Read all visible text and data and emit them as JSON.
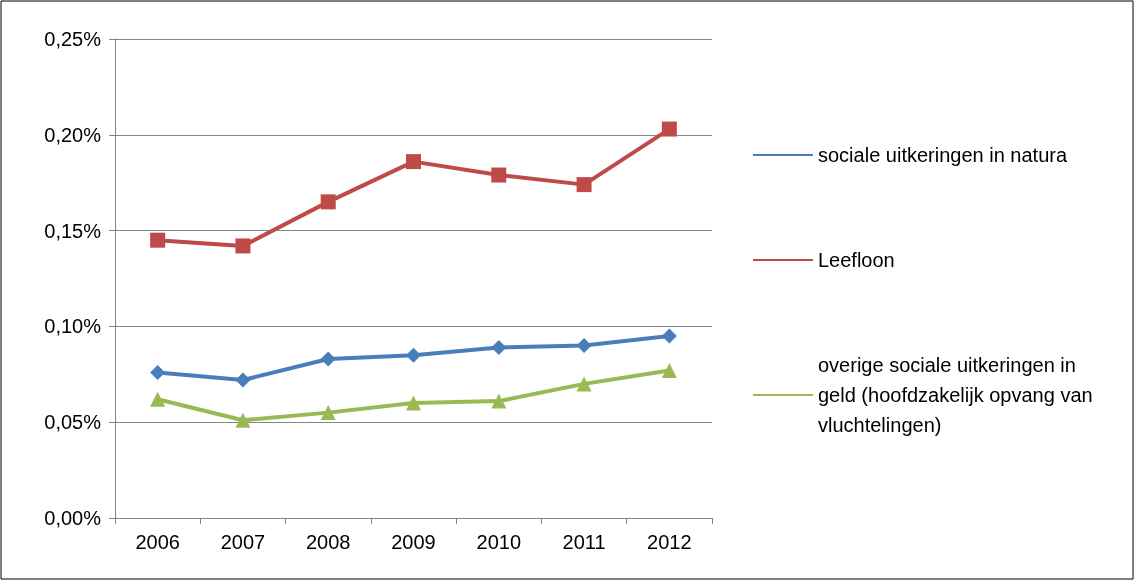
{
  "chart_data": {
    "type": "line",
    "categories": [
      "2006",
      "2007",
      "2008",
      "2009",
      "2010",
      "2011",
      "2012"
    ],
    "series": [
      {
        "name": "sociale uitkeringen in natura",
        "color": "#4a7ebb",
        "marker": "diamond",
        "values": [
          0.076,
          0.072,
          0.083,
          0.085,
          0.089,
          0.09,
          0.095
        ]
      },
      {
        "name": "Leefloon",
        "color": "#be4b48",
        "marker": "square",
        "values": [
          0.145,
          0.142,
          0.165,
          0.186,
          0.179,
          0.174,
          0.203
        ]
      },
      {
        "name": "overige sociale uitkeringen in geld (hoofdzakelijk opvang van vluchtelingen)",
        "color": "#98b954",
        "marker": "triangle",
        "values": [
          0.062,
          0.051,
          0.055,
          0.06,
          0.061,
          0.07,
          0.077
        ]
      }
    ],
    "ylim": [
      0,
      0.25
    ],
    "yticks": [
      {
        "value": 0,
        "label": "0,00%"
      },
      {
        "value": 0.05,
        "label": "0,05%"
      },
      {
        "value": 0.1,
        "label": "0,10%"
      },
      {
        "value": 0.15,
        "label": "0,15%"
      },
      {
        "value": 0.2,
        "label": "0,20%"
      },
      {
        "value": 0.25,
        "label": "0,25%"
      }
    ],
    "grid": "y",
    "legend": "right",
    "line_style": "solid"
  }
}
